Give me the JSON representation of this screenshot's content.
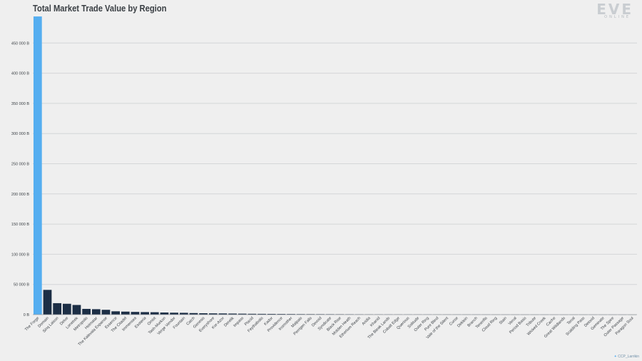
{
  "logo": {
    "main": "EVE",
    "sub": "ONLINE"
  },
  "credit": {
    "icon": "twitter-bird-icon",
    "handle": "CCP_Larrikin"
  },
  "colors": {
    "highlight": "#55aef0",
    "bar": "#1c2e45",
    "grid": "#d4d6d8",
    "axis": "#3a3f44"
  },
  "chart_data": {
    "type": "bar",
    "title": "Total Market Trade Value by Region",
    "xlabel": "",
    "ylabel": "",
    "ylim": [
      0,
      500000
    ],
    "yticks": [
      0,
      50000,
      100000,
      150000,
      200000,
      250000,
      300000,
      350000,
      400000,
      450000
    ],
    "ytick_labels": [
      "0 B",
      "50 000 B",
      "100 000 B",
      "150 000 B",
      "200 000 B",
      "250 000 B",
      "300 000 B",
      "350 000 B",
      "400 000 B",
      "450 000 B"
    ],
    "grid": true,
    "highlight_category": "The Forge",
    "categories": [
      "The Forge",
      "Domain",
      "Sinq Laison",
      "Delve",
      "Lonetrek",
      "Metropolis",
      "Heimatar",
      "The Kalevala Expanse",
      "Essence",
      "The Citadel",
      "Immensea",
      "Esoteria",
      "Omist",
      "Tash-Murkon",
      "Verge Vendor",
      "Fountain",
      "Catch",
      "Genesis",
      "Everyshore",
      "Kor-Azor",
      "Derelik",
      "Impass",
      "Placid",
      "Feythabolis",
      "Kador",
      "Providence",
      "Insmother",
      "Malpais",
      "Perrigen Falls",
      "Devoid",
      "Syndicate",
      "Black Rise",
      "Molden Heath",
      "Etherium Reach",
      "Aridia",
      "Khanid",
      "The Bleak Lands",
      "Cobalt Edge",
      "Querious",
      "Solitude",
      "Outer Ring",
      "Pure Blind",
      "Vale of the Silent",
      "Curse",
      "Deklein",
      "Branch",
      "Tenerifis",
      "Cloud Ring",
      "Stain",
      "Venal",
      "Period Basis",
      "Tribute",
      "Wicked Creek",
      "Cache",
      "Great Wildlands",
      "Tenal",
      "Scalding Pass",
      "Detorid",
      "Geminate",
      "The Spire",
      "Outer Passage",
      "Paragon Soul"
    ],
    "values": [
      494000,
      41000,
      19000,
      18000,
      16000,
      9500,
      9000,
      8000,
      5500,
      5000,
      4500,
      4200,
      4000,
      3500,
      3200,
      3000,
      2600,
      2300,
      2100,
      2000,
      1800,
      1600,
      1400,
      1300,
      1200,
      1100,
      1000,
      900,
      850,
      800,
      750,
      700,
      650,
      600,
      550,
      500,
      450,
      420,
      400,
      380,
      350,
      320,
      300,
      280,
      260,
      240,
      220,
      200,
      180,
      160,
      150,
      140,
      130,
      120,
      110,
      100,
      90,
      80,
      70,
      60,
      50,
      40
    ]
  }
}
